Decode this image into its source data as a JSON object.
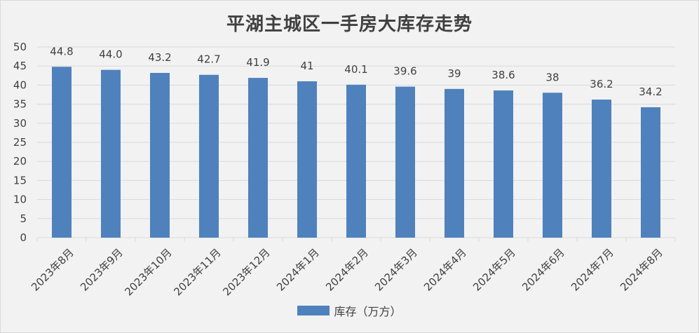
{
  "chart_data": {
    "type": "bar",
    "title": "平湖主城区一手房大库存走势",
    "categories": [
      "2023年8月",
      "2023年9月",
      "2023年10月",
      "2023年11月",
      "2023年12月",
      "2024年1月",
      "2024年2月",
      "2024年3月",
      "2024年4月",
      "2024年5月",
      "2024年6月",
      "2024年7月",
      "2024年8月"
    ],
    "series": [
      {
        "name": "库存（万方）",
        "values": [
          44.8,
          44.0,
          43.2,
          42.7,
          41.9,
          41,
          40.1,
          39.6,
          39,
          38.6,
          38,
          36.2,
          34.2
        ],
        "labels": [
          "44.8",
          "44.0",
          "43.2",
          "42.7",
          "41.9",
          "41",
          "40.1",
          "39.6",
          "39",
          "38.6",
          "38",
          "36.2",
          "34.2"
        ]
      }
    ],
    "ylim": [
      0,
      50
    ],
    "yticks": [
      "0",
      "5",
      "10",
      "15",
      "20",
      "25",
      "30",
      "35",
      "40",
      "45",
      "50"
    ],
    "grid": true,
    "legend": "bottom",
    "colors": {
      "bar": "#4f81bd",
      "grid": "#d9d9d9",
      "background": "#f2f2f2",
      "text": "#404040"
    }
  }
}
